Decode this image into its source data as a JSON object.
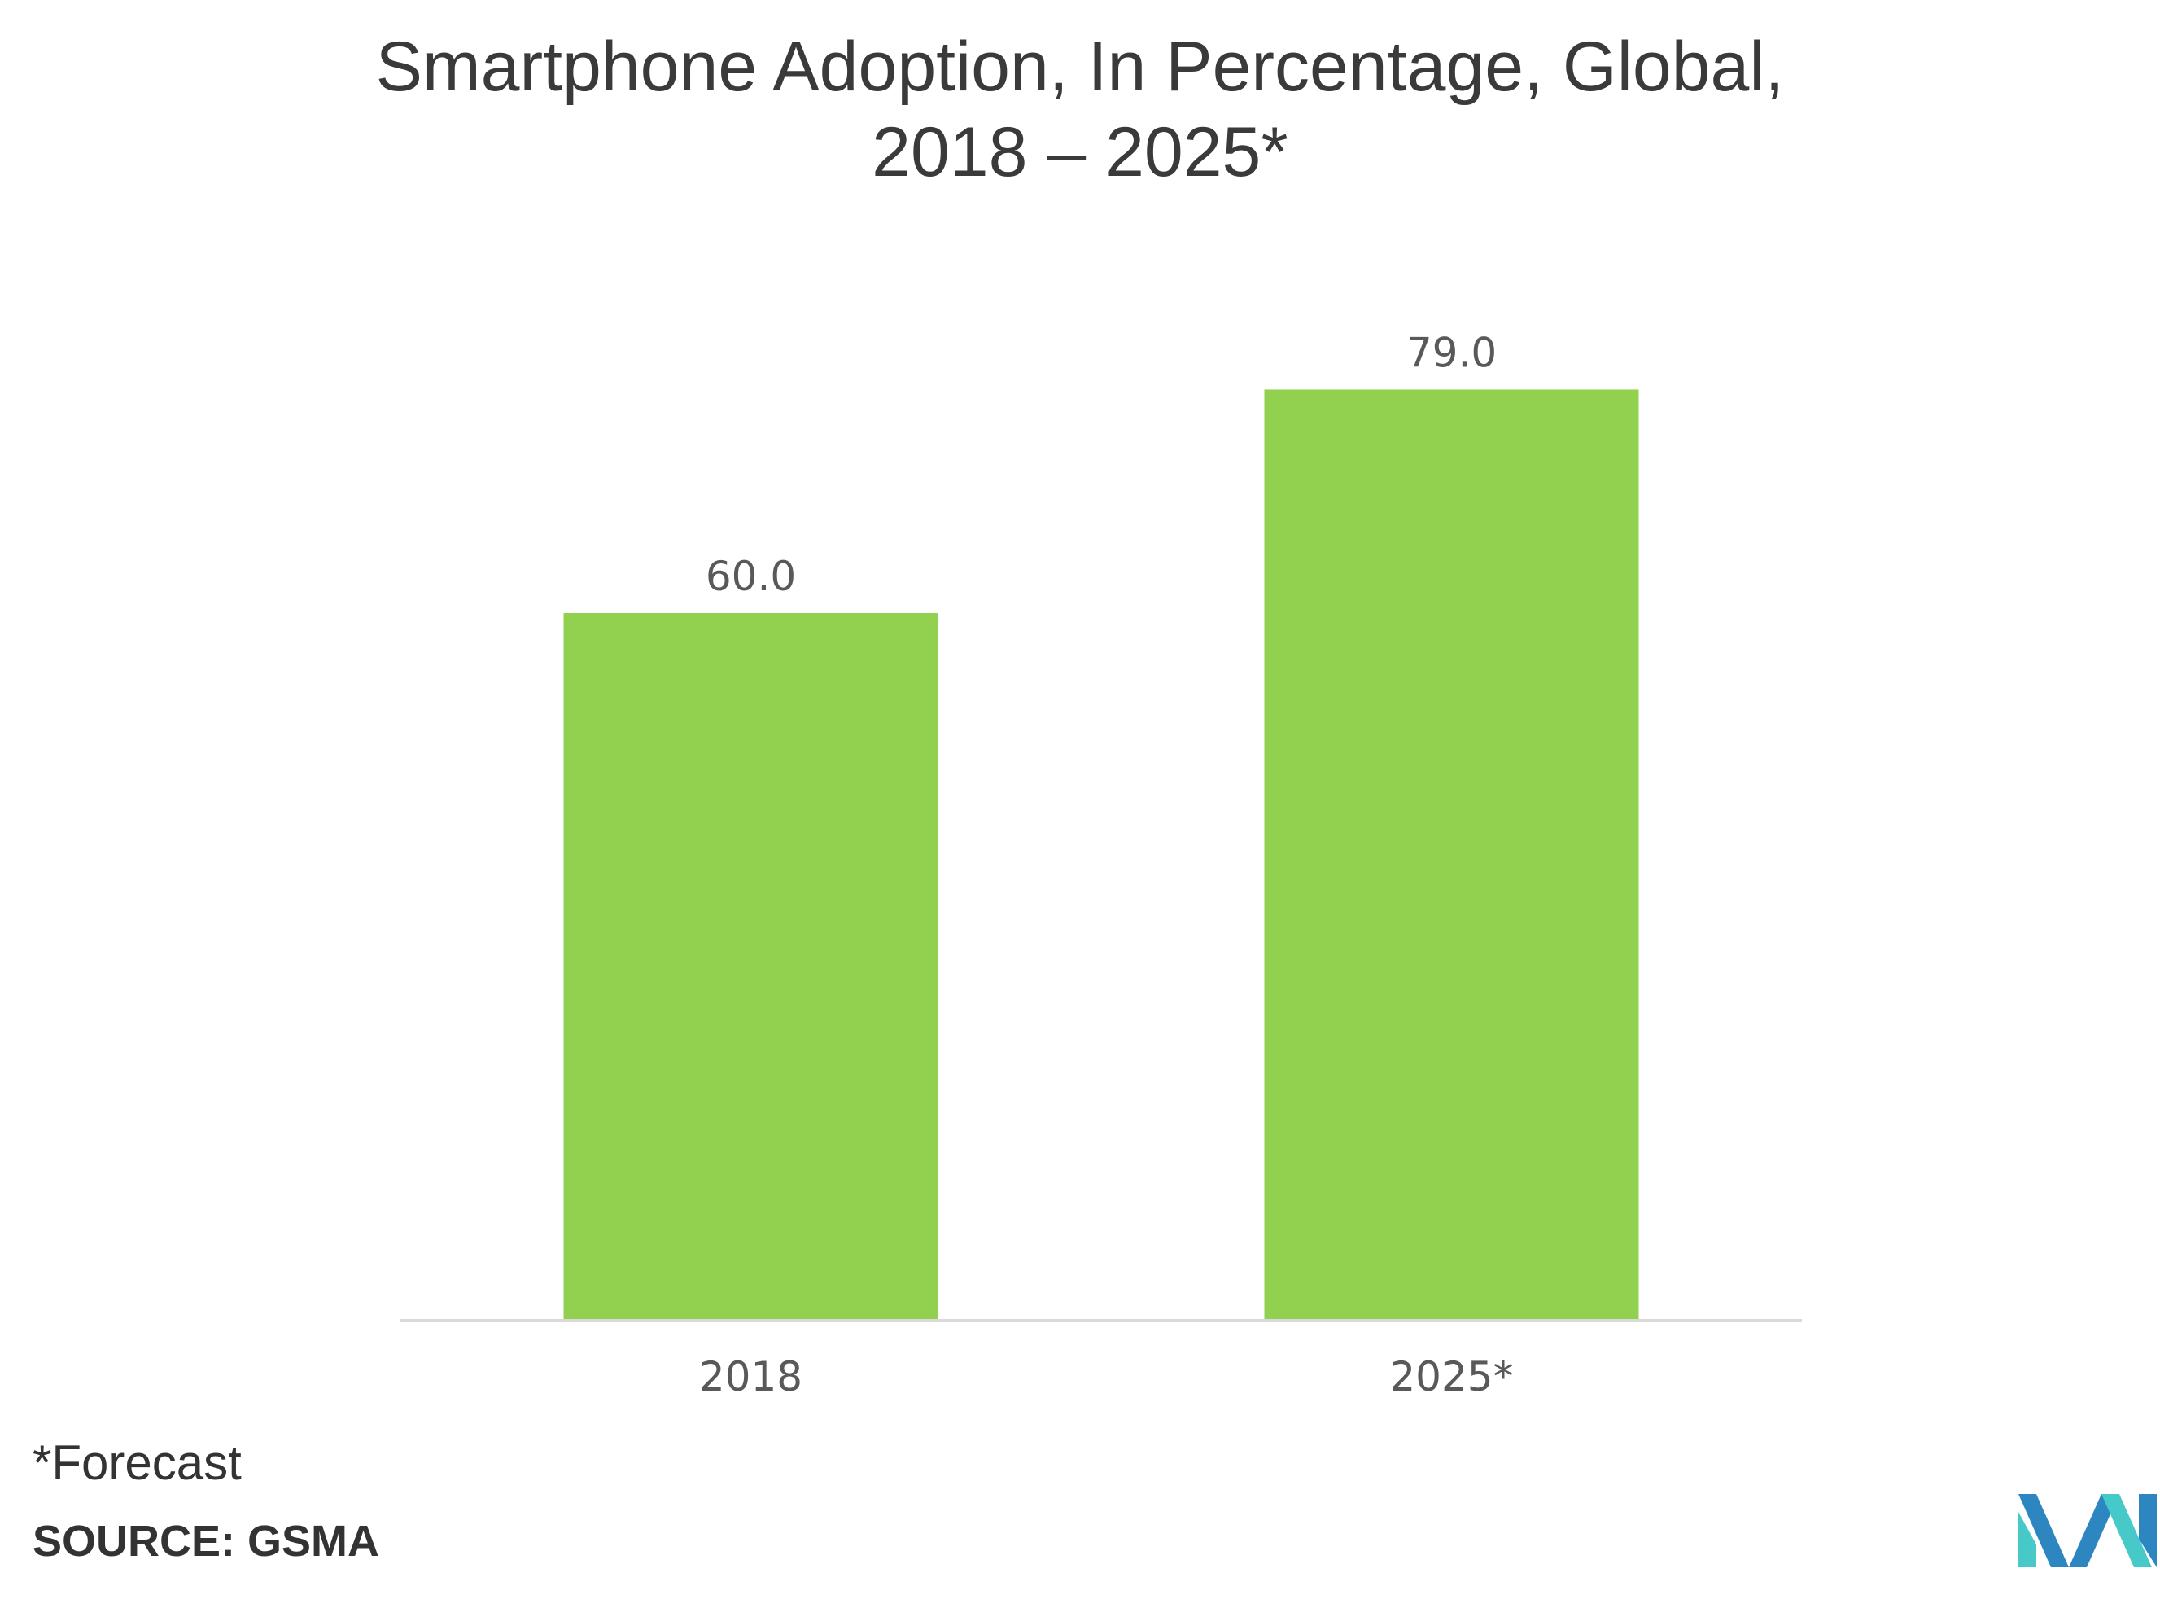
{
  "chart_data": {
    "type": "bar",
    "title_line1": "Smartphone Adoption, In Percentage, Global,",
    "title_line2": "2018 – 2025*",
    "categories": [
      "2018",
      "2025*"
    ],
    "values": [
      60.0,
      79.0
    ],
    "value_labels": [
      "60.0",
      "79.0"
    ],
    "xlabel": "",
    "ylabel": "",
    "ylim": [
      0,
      100
    ],
    "grid": false,
    "legend": "none",
    "bar_color": "#92d050",
    "baseline_color": "#d9d9d9"
  },
  "footnote": "*Forecast",
  "source": "SOURCE: GSMA",
  "logo": {
    "icon": "mordor-intelligence-logo-icon",
    "colors": [
      "#2e86c1",
      "#48c9c9"
    ]
  }
}
